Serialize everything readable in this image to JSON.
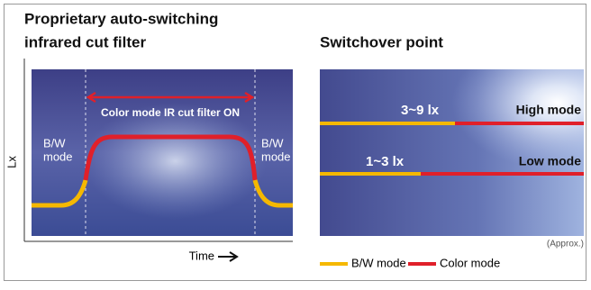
{
  "left_panel": {
    "title_line1": "Proprietary auto-switching",
    "title_line2": "infrared cut filter",
    "y_axis_label": "Lx",
    "x_axis_label": "Time",
    "arrow_label": "Color mode IR cut filter ON",
    "left_mode_line1": "B/W",
    "left_mode_line2": "mode",
    "right_mode_line1": "B/W",
    "right_mode_line2": "mode"
  },
  "right_panel": {
    "title": "Switchover point",
    "high_range": "3~9 lx",
    "high_label": "High mode",
    "low_range": "1~3 lx",
    "low_label": "Low mode",
    "note": "(Approx.)"
  },
  "legend": {
    "items": [
      "B/W mode",
      "Color mode"
    ]
  }
}
